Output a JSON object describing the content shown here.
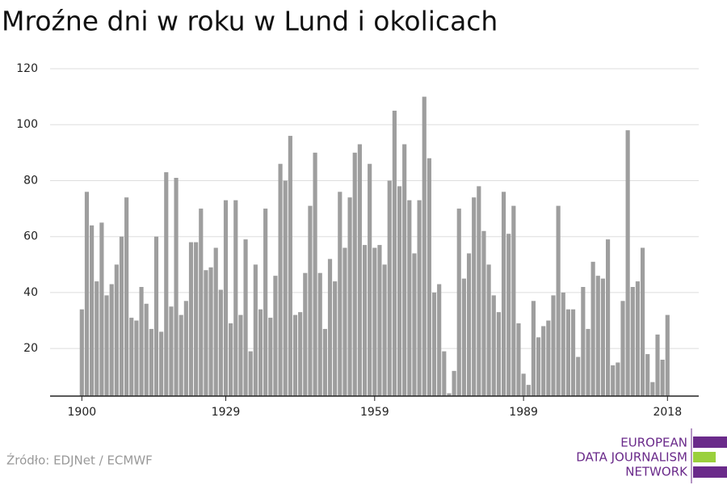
{
  "chart_data": {
    "type": "bar",
    "title": "Mroźne dni w roku w Lund i okolicach",
    "x": [
      1900,
      1901,
      1902,
      1903,
      1904,
      1905,
      1906,
      1907,
      1908,
      1909,
      1910,
      1911,
      1912,
      1913,
      1914,
      1915,
      1916,
      1917,
      1918,
      1919,
      1920,
      1921,
      1922,
      1923,
      1924,
      1925,
      1926,
      1927,
      1928,
      1929,
      1930,
      1931,
      1932,
      1933,
      1934,
      1935,
      1936,
      1937,
      1938,
      1939,
      1940,
      1941,
      1942,
      1943,
      1944,
      1945,
      1946,
      1947,
      1948,
      1949,
      1950,
      1951,
      1952,
      1953,
      1954,
      1955,
      1956,
      1957,
      1958,
      1959,
      1960,
      1961,
      1962,
      1963,
      1964,
      1965,
      1966,
      1967,
      1968,
      1969,
      1970,
      1971,
      1972,
      1973,
      1974,
      1975,
      1976,
      1977,
      1978,
      1979,
      1980,
      1981,
      1982,
      1983,
      1984,
      1985,
      1986,
      1987,
      1988,
      1989,
      1990,
      1991,
      1992,
      1993,
      1994,
      1995,
      1996,
      1997,
      1998,
      1999,
      2000,
      2001,
      2002,
      2003,
      2004,
      2005,
      2006,
      2007,
      2008,
      2009,
      2010,
      2011,
      2012,
      2013,
      2014,
      2015,
      2016,
      2017,
      2018
    ],
    "values": [
      34,
      76,
      64,
      44,
      65,
      39,
      43,
      50,
      60,
      74,
      31,
      30,
      42,
      36,
      27,
      60,
      26,
      83,
      35,
      81,
      32,
      37,
      58,
      58,
      70,
      48,
      49,
      56,
      41,
      73,
      29,
      73,
      32,
      59,
      19,
      50,
      34,
      70,
      31,
      46,
      86,
      80,
      96,
      32,
      33,
      47,
      71,
      90,
      47,
      27,
      52,
      44,
      76,
      56,
      74,
      90,
      93,
      57,
      86,
      56,
      57,
      50,
      80,
      105,
      78,
      93,
      73,
      54,
      73,
      110,
      88,
      40,
      43,
      19,
      4,
      12,
      70,
      45,
      54,
      74,
      78,
      62,
      50,
      39,
      33,
      76,
      61,
      71,
      29,
      11,
      7,
      37,
      24,
      28,
      30,
      39,
      71,
      40,
      34,
      34,
      17,
      42,
      27,
      51,
      46,
      45,
      59,
      14,
      15,
      37,
      98,
      42,
      44,
      56,
      18,
      8,
      25,
      16,
      32
    ],
    "color": "#9e9e9e",
    "xlim": [
      1893.6,
      2024.3
    ],
    "xticks": [
      1900,
      1929,
      1959,
      1989,
      2018
    ],
    "ylim": [
      3,
      120
    ],
    "yticks": [
      20,
      40,
      60,
      80,
      100,
      120
    ],
    "grid": true
  },
  "source": "Źródło: EDJNet / ECMWF",
  "logo": {
    "lines": [
      "EUROPEAN",
      "DATA JOURNALISM",
      "NETWORK"
    ]
  }
}
